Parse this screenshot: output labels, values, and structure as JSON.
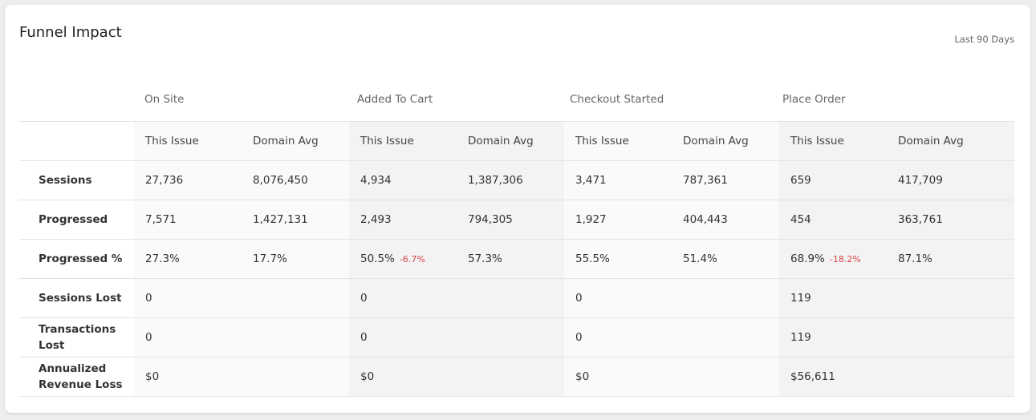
{
  "title": "Funnel Impact",
  "period": "Last 90 Days",
  "colors": {
    "delta_negative": "#d64545",
    "band_light": "#fafafa",
    "band_dark": "#f3f3f3"
  },
  "stages": [
    "On Site",
    "Added To Cart",
    "Checkout Started",
    "Place Order"
  ],
  "subheaders": {
    "this_issue": "This Issue",
    "domain_avg": "Domain Avg"
  },
  "rows": [
    {
      "label": "Sessions",
      "cells": [
        {
          "this": "27,736",
          "avg": "8,076,450"
        },
        {
          "this": "4,934",
          "avg": "1,387,306"
        },
        {
          "this": "3,471",
          "avg": "787,361"
        },
        {
          "this": "659",
          "avg": "417,709"
        }
      ]
    },
    {
      "label": "Progressed",
      "cells": [
        {
          "this": "7,571",
          "avg": "1,427,131"
        },
        {
          "this": "2,493",
          "avg": "794,305"
        },
        {
          "this": "1,927",
          "avg": "404,443"
        },
        {
          "this": "454",
          "avg": "363,761"
        }
      ]
    },
    {
      "label": "Progressed %",
      "cells": [
        {
          "this": "27.3%",
          "avg": "17.7%"
        },
        {
          "this": "50.5%",
          "delta": "-6.7%",
          "avg": "57.3%"
        },
        {
          "this": "55.5%",
          "avg": "51.4%"
        },
        {
          "this": "68.9%",
          "delta": "-18.2%",
          "avg": "87.1%"
        }
      ]
    },
    {
      "label": "Sessions Lost",
      "cells": [
        {
          "this": "0",
          "avg": ""
        },
        {
          "this": "0",
          "avg": ""
        },
        {
          "this": "0",
          "avg": ""
        },
        {
          "this": "119",
          "avg": ""
        }
      ]
    },
    {
      "label": "Transactions Lost",
      "cells": [
        {
          "this": "0",
          "avg": ""
        },
        {
          "this": "0",
          "avg": ""
        },
        {
          "this": "0",
          "avg": ""
        },
        {
          "this": "119",
          "avg": ""
        }
      ]
    },
    {
      "label": "Annualized Revenue Loss",
      "cells": [
        {
          "this": "$0",
          "avg": ""
        },
        {
          "this": "$0",
          "avg": ""
        },
        {
          "this": "$0",
          "avg": ""
        },
        {
          "this": "$56,611",
          "avg": ""
        }
      ]
    }
  ]
}
